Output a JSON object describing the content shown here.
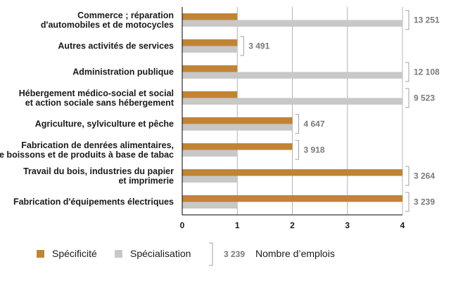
{
  "chart_data": {
    "type": "bar",
    "orientation": "horizontal",
    "categories": [
      [
        "Commerce ; réparation",
        "d'automobiles et de motocycles"
      ],
      [
        "Autres activités de services"
      ],
      [
        "Administration publique"
      ],
      [
        "Hébergement médico-social et social",
        "et action sociale sans hébergement"
      ],
      [
        "Agriculture, sylviculture et pêche"
      ],
      [
        "Fabrication de denrées alimentaires,",
        "de boissons et de produits à base de tabac"
      ],
      [
        "Travail du bois, industries du papier",
        "et imprimerie"
      ],
      [
        "Fabrication d'équipements électriques"
      ]
    ],
    "series": [
      {
        "name": "Spécificité",
        "color": "#c08436",
        "values": [
          1.0,
          1.0,
          1.0,
          1.0,
          2.0,
          2.0,
          4.0,
          4.0
        ]
      },
      {
        "name": "Spécialisation",
        "color": "#c8c8c8",
        "values": [
          4.0,
          1.0,
          4.0,
          4.0,
          2.0,
          1.0,
          1.0,
          1.0
        ]
      }
    ],
    "employment": [
      "13 251",
      "3 491",
      "12 108",
      "9 523",
      "4 647",
      "3 918",
      "3 264",
      "3 239"
    ],
    "xticks": [
      0,
      1,
      2,
      3,
      4
    ],
    "xlim": [
      0,
      4
    ],
    "grid": true,
    "legend": {
      "position": "bottom",
      "items": [
        "Spécificité",
        "Spécialisation"
      ],
      "employment_sample": "3 239",
      "employment_label": "Nombre d’emplois"
    },
    "colors": {
      "grid": "#b4b4b4",
      "axis": "#000000",
      "bracket": "#a0a0a0"
    }
  }
}
